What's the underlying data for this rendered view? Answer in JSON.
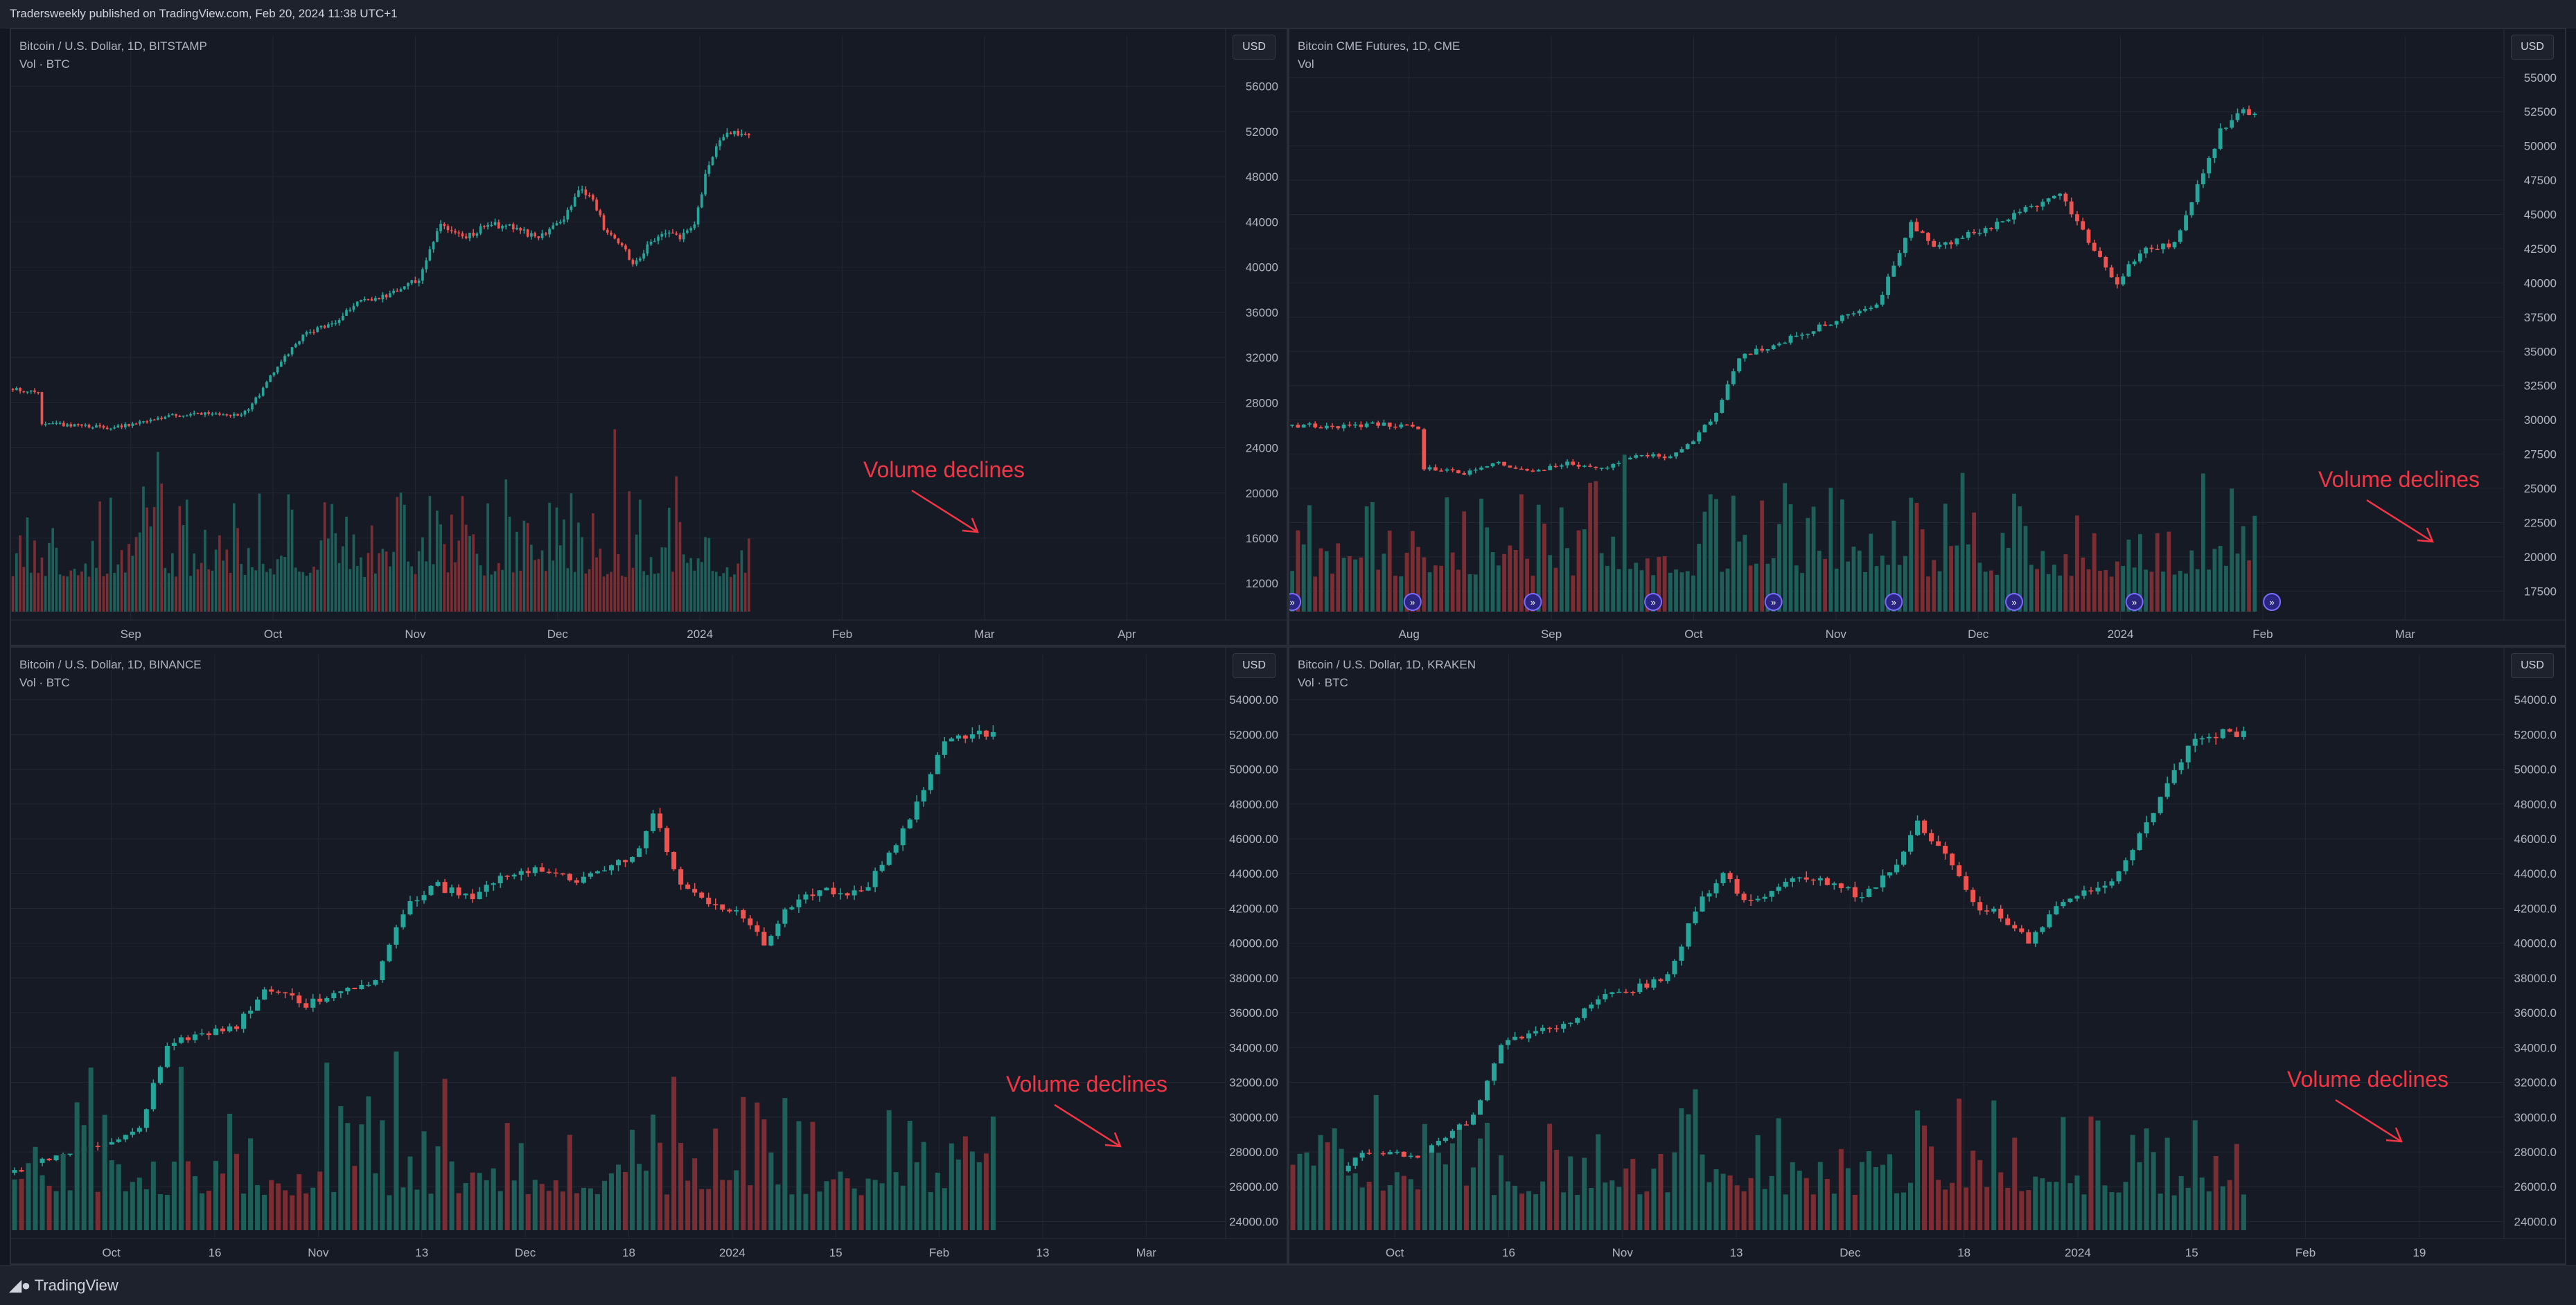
{
  "header": {
    "publish_text": "Tradersweekly published on TradingView.com, Feb 20, 2024 11:38 UTC+1"
  },
  "footer": {
    "brand": "TradingView",
    "logo_icon": "tradingview-logo-icon"
  },
  "colors": {
    "up": "#26a69a",
    "down": "#ef5350",
    "vol_up": "#1f5f5a",
    "vol_down": "#7a2e33",
    "grid": "#232733",
    "annotation": "#f23645"
  },
  "chart_data": [
    {
      "type": "candlestick",
      "title": "Bitcoin / U.S. Dollar, 1D, BITSTAMP",
      "volume_label": "Vol · BTC",
      "currency": "USD",
      "annotation": "Volume declines",
      "ylim": [
        9500,
        58000
      ],
      "price_ticks": [
        "56000",
        "52000",
        "48000",
        "44000",
        "40000",
        "36000",
        "32000",
        "28000",
        "24000",
        "20000",
        "16000",
        "12000"
      ],
      "time_ticks": [
        "Sep",
        "Oct",
        "Nov",
        "Dec",
        "2024",
        "Feb",
        "Mar",
        "Apr"
      ],
      "anchors": [
        [
          0,
          29200
        ],
        [
          7,
          28800
        ],
        [
          8,
          26200
        ],
        [
          15,
          26000
        ],
        [
          20,
          25900
        ],
        [
          28,
          25800
        ],
        [
          35,
          26300
        ],
        [
          45,
          26900
        ],
        [
          55,
          27100
        ],
        [
          63,
          26800
        ],
        [
          68,
          28700
        ],
        [
          72,
          30800
        ],
        [
          80,
          34000
        ],
        [
          88,
          35000
        ],
        [
          96,
          37000
        ],
        [
          104,
          37500
        ],
        [
          112,
          39000
        ],
        [
          118,
          43800
        ],
        [
          125,
          42600
        ],
        [
          131,
          43800
        ],
        [
          138,
          43500
        ],
        [
          145,
          42500
        ],
        [
          152,
          44200
        ],
        [
          156,
          46800
        ],
        [
          160,
          46000
        ],
        [
          163,
          43500
        ],
        [
          168,
          42000
        ],
        [
          171,
          40100
        ],
        [
          176,
          42200
        ],
        [
          180,
          43000
        ],
        [
          184,
          42600
        ],
        [
          188,
          43800
        ],
        [
          191,
          48000
        ],
        [
          195,
          51500
        ],
        [
          199,
          52000
        ],
        [
          203,
          51800
        ]
      ],
      "n_candles": 204,
      "n_slots": 335
    },
    {
      "type": "candlestick",
      "title": "Bitcoin CME Futures, 1D, CME",
      "volume_label": "Vol",
      "currency": "USD",
      "annotation": "Volume declines",
      "ylim": [
        16000,
        56000
      ],
      "price_ticks": [
        "55000",
        "52500",
        "50000",
        "47500",
        "45000",
        "42500",
        "40000",
        "37500",
        "35000",
        "32500",
        "30000",
        "27500",
        "25000",
        "22500",
        "20000",
        "17500"
      ],
      "time_ticks": [
        "Aug",
        "Sep",
        "Oct",
        "Nov",
        "Dec",
        "2024",
        "Feb",
        "Mar"
      ],
      "anchors": [
        [
          0,
          29600
        ],
        [
          8,
          29500
        ],
        [
          15,
          29700
        ],
        [
          22,
          29400
        ],
        [
          23,
          26500
        ],
        [
          30,
          26100
        ],
        [
          36,
          26800
        ],
        [
          42,
          26300
        ],
        [
          48,
          26800
        ],
        [
          54,
          26500
        ],
        [
          60,
          27500
        ],
        [
          66,
          27200
        ],
        [
          70,
          28500
        ],
        [
          74,
          30500
        ],
        [
          78,
          34500
        ],
        [
          84,
          35500
        ],
        [
          90,
          36500
        ],
        [
          96,
          37500
        ],
        [
          102,
          38200
        ],
        [
          108,
          44500
        ],
        [
          112,
          42600
        ],
        [
          118,
          43500
        ],
        [
          124,
          44400
        ],
        [
          130,
          45800
        ],
        [
          134,
          46600
        ],
        [
          138,
          43700
        ],
        [
          142,
          41000
        ],
        [
          144,
          40000
        ],
        [
          148,
          42400
        ],
        [
          154,
          42800
        ],
        [
          158,
          47000
        ],
        [
          162,
          51000
        ],
        [
          166,
          52500
        ],
        [
          168,
          52300
        ]
      ],
      "n_candles": 169,
      "n_slots": 212,
      "event_markers": 9,
      "event_icon": "earnings-event-icon"
    },
    {
      "type": "candlestick",
      "title": "Bitcoin / U.S. Dollar, 1D, BINANCE",
      "volume_label": "Vol · BTC",
      "currency": "USD",
      "annotation": "Volume declines",
      "ylim": [
        23500,
        55000
      ],
      "price_ticks": [
        "54000.00",
        "52000.00",
        "50000.00",
        "48000.00",
        "46000.00",
        "44000.00",
        "42000.00",
        "40000.00",
        "38000.00",
        "36000.00",
        "34000.00",
        "32000.00",
        "30000.00",
        "28000.00",
        "26000.00",
        "24000.00"
      ],
      "time_ticks": [
        "Oct",
        "16",
        "Nov",
        "13",
        "Dec",
        "18",
        "2024",
        "15",
        "Feb",
        "13",
        "Mar"
      ],
      "anchors": [
        [
          0,
          26800
        ],
        [
          6,
          27800
        ],
        [
          10,
          28200
        ],
        [
          14,
          28500
        ],
        [
          18,
          29400
        ],
        [
          22,
          34200
        ],
        [
          26,
          34700
        ],
        [
          32,
          35200
        ],
        [
          36,
          37400
        ],
        [
          42,
          36500
        ],
        [
          46,
          37100
        ],
        [
          52,
          37800
        ],
        [
          56,
          41800
        ],
        [
          60,
          43400
        ],
        [
          66,
          42600
        ],
        [
          70,
          43700
        ],
        [
          76,
          44200
        ],
        [
          82,
          43600
        ],
        [
          86,
          44300
        ],
        [
          90,
          45200
        ],
        [
          92,
          47400
        ],
        [
          96,
          43200
        ],
        [
          100,
          42500
        ],
        [
          104,
          41800
        ],
        [
          108,
          40000
        ],
        [
          112,
          42300
        ],
        [
          116,
          43000
        ],
        [
          122,
          42800
        ],
        [
          126,
          45000
        ],
        [
          130,
          48000
        ],
        [
          134,
          51500
        ],
        [
          138,
          52000
        ],
        [
          141,
          51900
        ]
      ],
      "n_candles": 142,
      "n_slots": 175
    },
    {
      "type": "candlestick",
      "title": "Bitcoin / U.S. Dollar, 1D, KRAKEN",
      "volume_label": "Vol · BTC",
      "currency": "USD",
      "annotation": "Volume declines",
      "ylim": [
        23500,
        55000
      ],
      "price_ticks": [
        "54000.0",
        "52000.0",
        "50000.0",
        "48000.0",
        "46000.0",
        "44000.0",
        "42000.0",
        "40000.0",
        "38000.0",
        "36000.0",
        "34000.0",
        "32000.0",
        "30000.0",
        "28000.0",
        "26000.0",
        "24000.0"
      ],
      "time_ticks": [
        "Oct",
        "16",
        "Nov",
        "13",
        "Dec",
        "18",
        "2024",
        "15",
        "Feb",
        "19"
      ],
      "anchors": [
        [
          0,
          26600
        ],
        [
          6,
          26800
        ],
        [
          10,
          27800
        ],
        [
          14,
          28000
        ],
        [
          18,
          27600
        ],
        [
          22,
          28900
        ],
        [
          26,
          30000
        ],
        [
          30,
          34200
        ],
        [
          34,
          34800
        ],
        [
          40,
          35400
        ],
        [
          44,
          36900
        ],
        [
          48,
          37200
        ],
        [
          54,
          38000
        ],
        [
          58,
          42000
        ],
        [
          62,
          43900
        ],
        [
          66,
          42300
        ],
        [
          72,
          43800
        ],
        [
          78,
          43400
        ],
        [
          82,
          42600
        ],
        [
          86,
          44000
        ],
        [
          90,
          46800
        ],
        [
          94,
          45000
        ],
        [
          98,
          42300
        ],
        [
          102,
          41600
        ],
        [
          106,
          40000
        ],
        [
          110,
          42300
        ],
        [
          114,
          42800
        ],
        [
          118,
          43500
        ],
        [
          122,
          46200
        ],
        [
          126,
          49000
        ],
        [
          130,
          51800
        ],
        [
          134,
          52000
        ],
        [
          137,
          51900
        ]
      ],
      "n_candles": 138,
      "n_slots": 175
    }
  ]
}
